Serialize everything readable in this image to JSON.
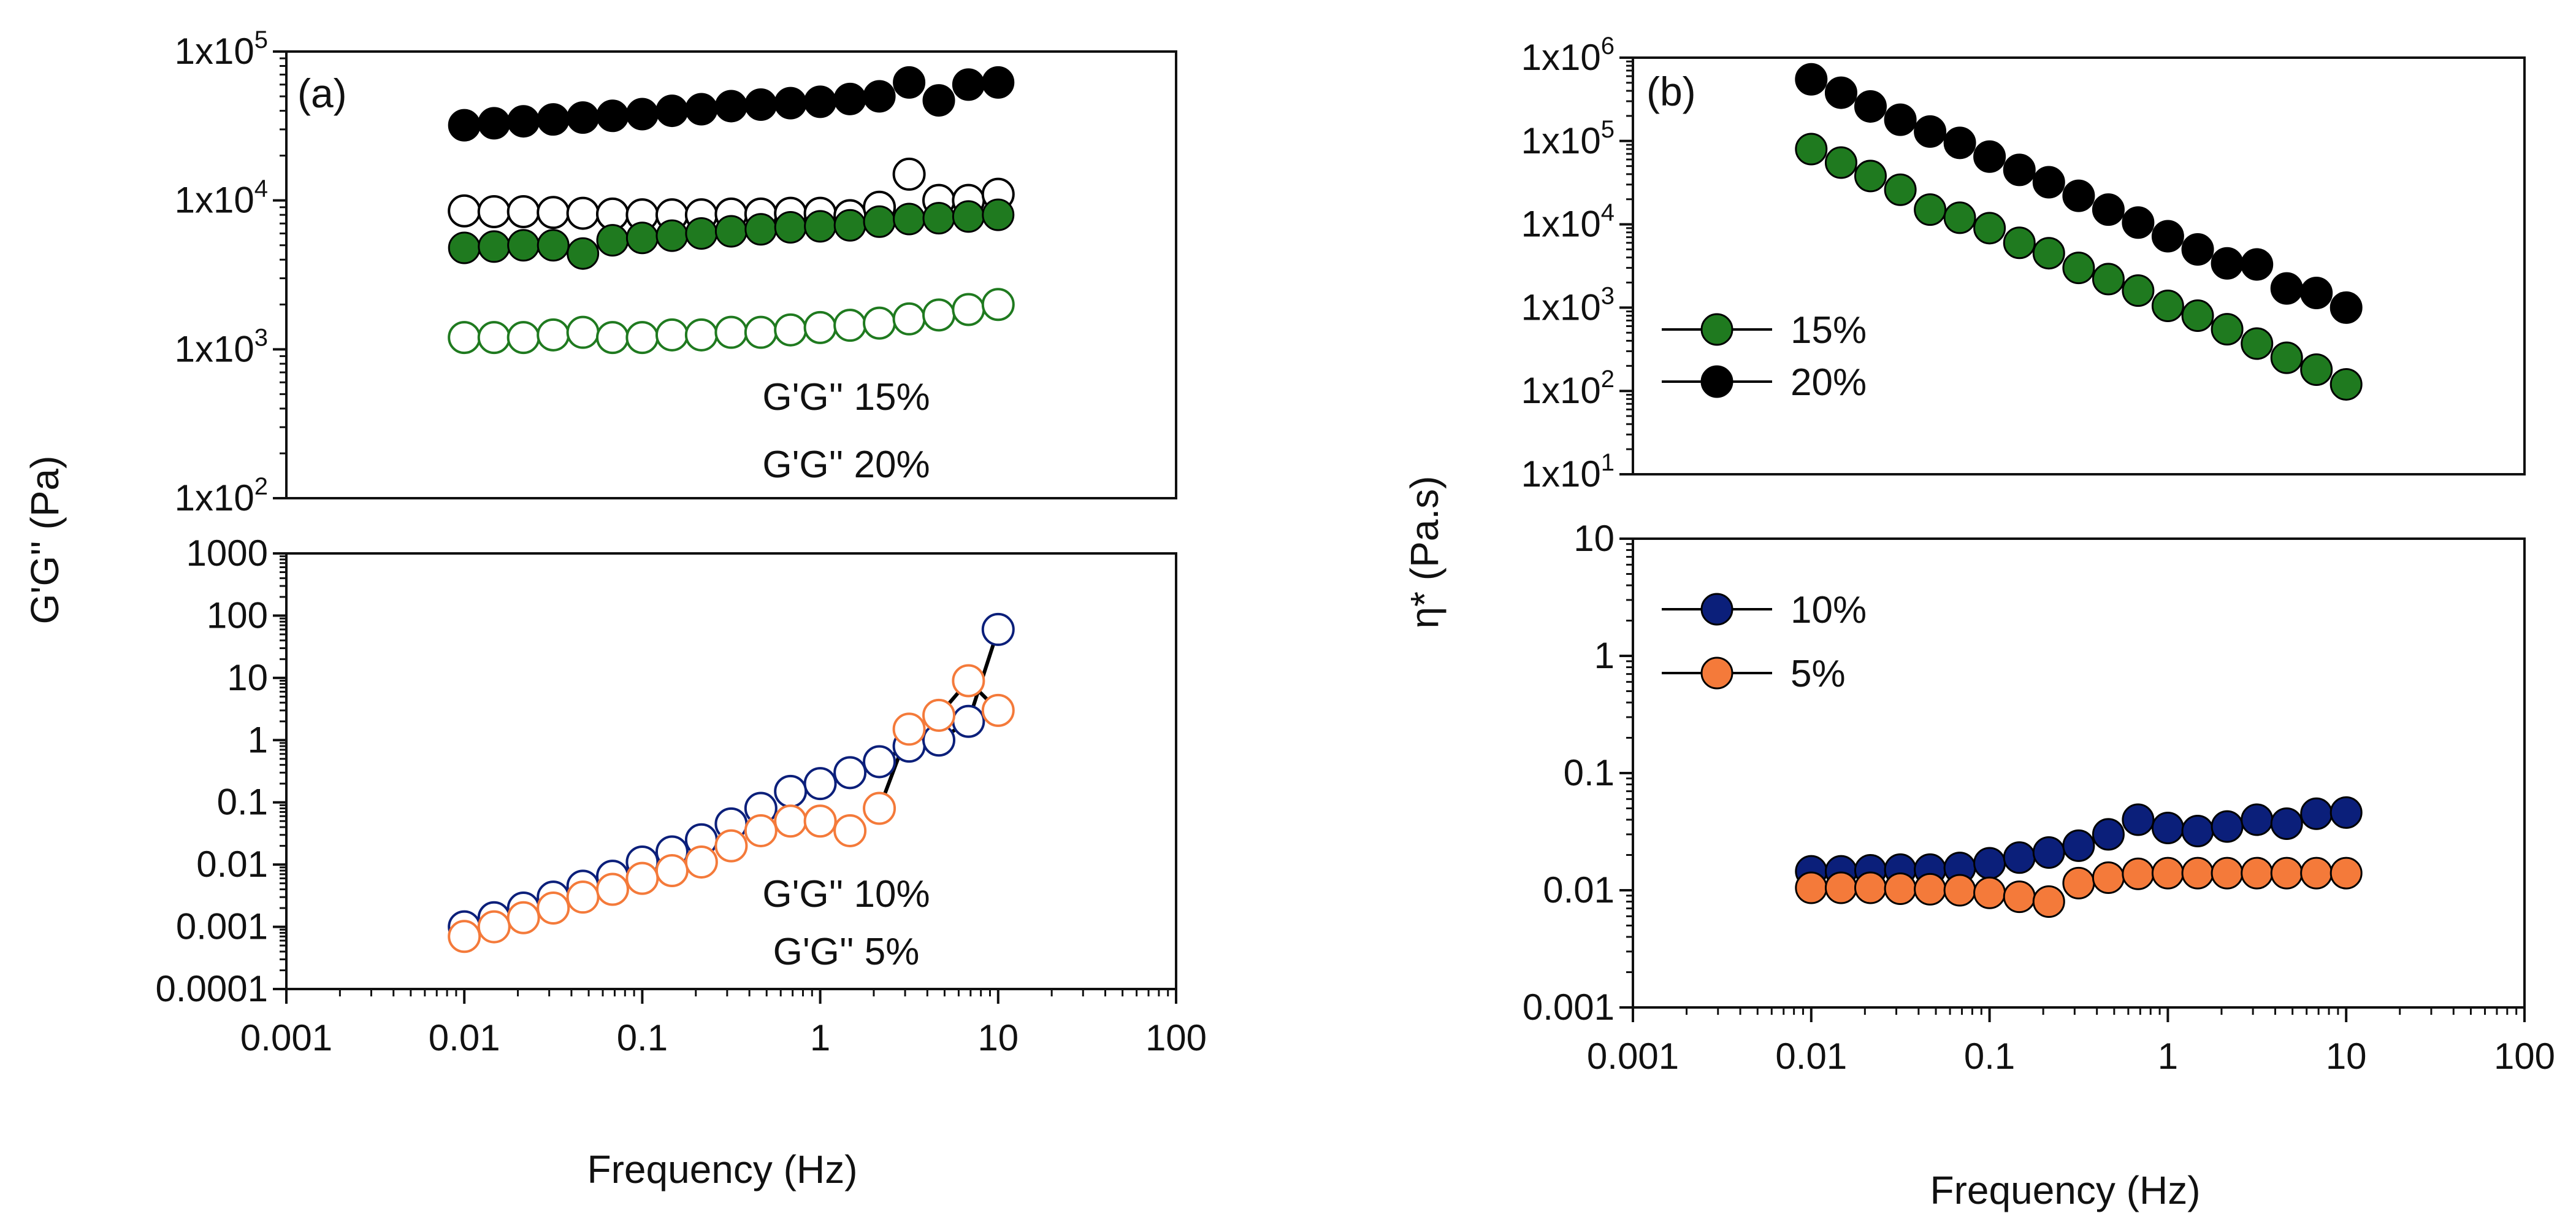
{
  "colors": {
    "black": "#000000",
    "green": "#1f7a1f",
    "navy": "#0b1f7a",
    "orange": "#f47a3a",
    "white": "#ffffff",
    "axis": "#111111"
  },
  "chart_data": [
    {
      "id": "a-top",
      "type": "scatter",
      "panel_label": "(a)",
      "xscale": "log",
      "yscale": "log",
      "xlim": [
        0.001,
        100
      ],
      "ylim": [
        100,
        100000
      ],
      "ytick_labels": [
        {
          "base": "1x10",
          "exp": "5",
          "value": 100000
        },
        {
          "base": "1x10",
          "exp": "4",
          "value": 10000
        },
        {
          "base": "1x10",
          "exp": "3",
          "value": 1000
        },
        {
          "base": "1x10",
          "exp": "2",
          "value": 100
        }
      ],
      "x": [
        0.01,
        0.0147,
        0.0215,
        0.0316,
        0.0464,
        0.0681,
        0.1,
        0.147,
        0.215,
        0.316,
        0.464,
        0.681,
        1.0,
        1.47,
        2.15,
        3.16,
        4.64,
        6.81,
        10.0
      ],
      "series": [
        {
          "name": "G' 20%",
          "marker": "filled",
          "color": "black",
          "values": [
            32000,
            33000,
            34000,
            35000,
            36000,
            37000,
            38000,
            40000,
            41000,
            43000,
            44000,
            45000,
            46000,
            48000,
            50000,
            62000,
            47000,
            60000,
            62000
          ]
        },
        {
          "name": "G'' 20%",
          "marker": "open",
          "color": "black",
          "values": [
            8500,
            8400,
            8400,
            8300,
            8200,
            8100,
            8000,
            8000,
            8000,
            8100,
            8100,
            8200,
            8200,
            7900,
            9000,
            15000,
            10000,
            10000,
            11000
          ]
        },
        {
          "name": "G' 15%",
          "marker": "filled",
          "color": "green",
          "values": [
            4800,
            4900,
            5000,
            5000,
            4400,
            5400,
            5600,
            5800,
            6000,
            6200,
            6400,
            6600,
            6700,
            6800,
            7200,
            7500,
            7600,
            7800,
            8000
          ]
        },
        {
          "name": "G'' 15%",
          "marker": "open",
          "color": "green",
          "values": [
            1200,
            1200,
            1200,
            1250,
            1300,
            1200,
            1200,
            1250,
            1250,
            1300,
            1300,
            1350,
            1400,
            1450,
            1500,
            1600,
            1700,
            1850,
            2000
          ]
        }
      ],
      "legend_lines": [
        "G'G'' 15%",
        "G'G'' 20%"
      ],
      "legend_position": "bottom-center"
    },
    {
      "id": "a-bottom",
      "type": "scatter",
      "xscale": "log",
      "yscale": "log",
      "xlim": [
        0.001,
        100
      ],
      "ylim": [
        0.0001,
        1000
      ],
      "ytick_labels": [
        {
          "base": "1000",
          "value": 1000
        },
        {
          "base": "100",
          "value": 100
        },
        {
          "base": "10",
          "value": 10
        },
        {
          "base": "1",
          "value": 1
        },
        {
          "base": "0.1",
          "value": 0.1
        },
        {
          "base": "0.01",
          "value": 0.01
        },
        {
          "base": "0.001",
          "value": 0.001
        },
        {
          "base": "0.0001",
          "value": 0.0001
        }
      ],
      "xtick_labels": [
        "0.001",
        "0.01",
        "0.1",
        "1",
        "10",
        "100"
      ],
      "xtick_values": [
        0.001,
        0.01,
        0.1,
        1,
        10,
        100
      ],
      "x": [
        0.01,
        0.0147,
        0.0215,
        0.0316,
        0.0464,
        0.0681,
        0.1,
        0.147,
        0.215,
        0.316,
        0.464,
        0.681,
        1.0,
        1.47,
        2.15,
        3.16,
        4.64,
        6.81,
        10.0
      ],
      "series": [
        {
          "name": "G'G'' 10%",
          "marker": "open",
          "color": "navy",
          "values": [
            0.001,
            0.0014,
            0.002,
            0.003,
            0.0045,
            0.0065,
            0.011,
            0.016,
            0.025,
            0.045,
            0.08,
            0.15,
            0.2,
            0.3,
            0.45,
            0.8,
            1.0,
            2.0,
            60
          ]
        },
        {
          "name": "G'G'' 5%",
          "marker": "open",
          "color": "orange",
          "values": [
            0.0007,
            0.001,
            0.0014,
            0.002,
            0.003,
            0.004,
            0.006,
            0.008,
            0.011,
            0.02,
            0.035,
            0.05,
            0.05,
            0.035,
            0.08,
            1.5,
            2.5,
            9.0,
            3.0
          ]
        }
      ],
      "connected_segments": [
        [
          14,
          15
        ],
        [
          16,
          17
        ],
        [
          17,
          18
        ]
      ],
      "legend_lines": [
        "G'G'' 10%",
        "G'G'' 5%"
      ],
      "legend_position": "bottom-center"
    },
    {
      "id": "b-top",
      "type": "scatter",
      "panel_label": "(b)",
      "xscale": "log",
      "yscale": "log",
      "xlim": [
        0.001,
        100
      ],
      "ylim": [
        10,
        1000000
      ],
      "ytick_labels": [
        {
          "base": "1x10",
          "exp": "6",
          "value": 1000000
        },
        {
          "base": "1x10",
          "exp": "5",
          "value": 100000
        },
        {
          "base": "1x10",
          "exp": "4",
          "value": 10000
        },
        {
          "base": "1x10",
          "exp": "3",
          "value": 1000
        },
        {
          "base": "1x10",
          "exp": "2",
          "value": 100
        },
        {
          "base": "1x10",
          "exp": "1",
          "value": 10
        }
      ],
      "x": [
        0.01,
        0.0147,
        0.0215,
        0.0316,
        0.0464,
        0.0681,
        0.1,
        0.147,
        0.215,
        0.316,
        0.464,
        0.681,
        1.0,
        1.47,
        2.15,
        3.16,
        4.64,
        6.81,
        10.0
      ],
      "series": [
        {
          "name": "15%",
          "marker": "filled",
          "color": "green",
          "values": [
            80000,
            55000,
            38000,
            26000,
            15000,
            12000,
            9000,
            6000,
            4500,
            3000,
            2200,
            1600,
            1050,
            800,
            550,
            370,
            250,
            180,
            120
          ]
        },
        {
          "name": "20%",
          "marker": "filled",
          "color": "black",
          "values": [
            550000,
            380000,
            260000,
            180000,
            130000,
            95000,
            65000,
            45000,
            32000,
            22000,
            15000,
            10500,
            7200,
            5000,
            3400,
            3300,
            1700,
            1500,
            1000
          ]
        }
      ],
      "legend": [
        "15%",
        "20%"
      ],
      "legend_position": "left-center"
    },
    {
      "id": "b-bottom",
      "type": "scatter",
      "xscale": "log",
      "yscale": "log",
      "xlim": [
        0.001,
        100
      ],
      "ylim": [
        0.001,
        10
      ],
      "ytick_labels": [
        {
          "base": "10",
          "value": 10
        },
        {
          "base": "1",
          "value": 1
        },
        {
          "base": "0.1",
          "value": 0.1
        },
        {
          "base": "0.01",
          "value": 0.01
        },
        {
          "base": "0.001",
          "value": 0.001
        }
      ],
      "xtick_labels": [
        "0.001",
        "0.01",
        "0.1",
        "1",
        "10",
        "100"
      ],
      "xtick_values": [
        0.001,
        0.01,
        0.1,
        1,
        10,
        100
      ],
      "x": [
        0.01,
        0.0147,
        0.0215,
        0.0316,
        0.0464,
        0.0681,
        0.1,
        0.147,
        0.215,
        0.316,
        0.464,
        0.681,
        1.0,
        1.47,
        2.15,
        3.16,
        4.64,
        6.81,
        10.0
      ],
      "series": [
        {
          "name": "10%",
          "marker": "filled",
          "color": "navy",
          "values": [
            0.0145,
            0.0145,
            0.0148,
            0.015,
            0.015,
            0.0155,
            0.017,
            0.019,
            0.021,
            0.024,
            0.03,
            0.04,
            0.034,
            0.032,
            0.035,
            0.04,
            0.037,
            0.045,
            0.046
          ]
        },
        {
          "name": "5%",
          "marker": "filled",
          "color": "orange",
          "values": [
            0.0105,
            0.0105,
            0.0105,
            0.0103,
            0.0102,
            0.01,
            0.0095,
            0.0088,
            0.008,
            0.0115,
            0.0128,
            0.0138,
            0.014,
            0.014,
            0.014,
            0.014,
            0.014,
            0.014,
            0.014
          ]
        }
      ],
      "legend": [
        "10%",
        "5%"
      ],
      "legend_position": "top-left"
    }
  ],
  "axis_titles": {
    "a_ylabel": "G'G'' (Pa)",
    "a_xlabel": "Frequency (Hz)",
    "b_ylabel": "η* (Pa.s)",
    "b_xlabel": "Frequency (Hz)"
  }
}
